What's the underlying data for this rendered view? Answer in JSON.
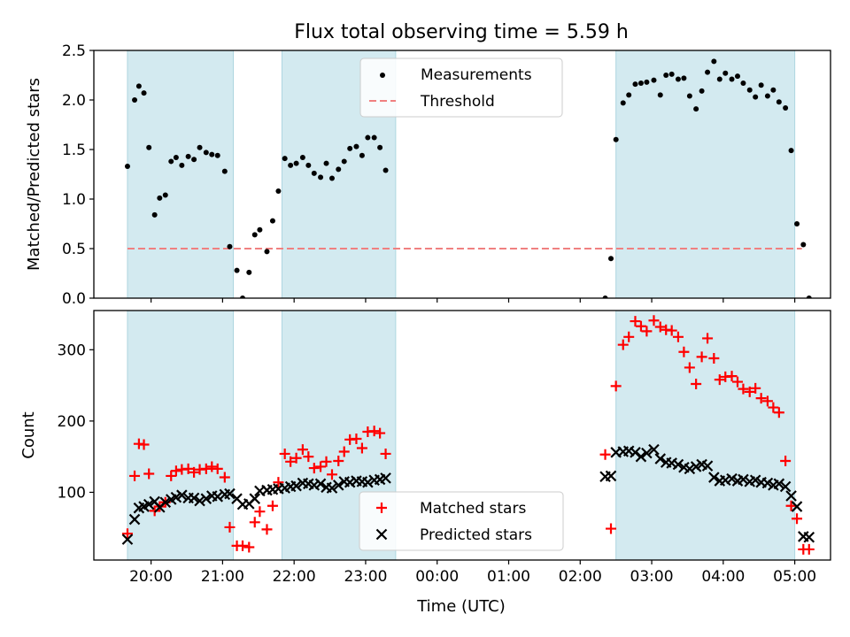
{
  "chart_data": [
    {
      "type": "scatter",
      "title": "Flux total observing time = 5.59 h",
      "ylabel": "Matched/Predicted stars",
      "xlabel": "",
      "ylim": [
        0,
        2.5
      ],
      "yticks": [
        "0.0",
        "0.5",
        "1.0",
        "1.5",
        "2.0",
        "2.5"
      ],
      "legend": {
        "placement": "top-center",
        "entries": [
          "Measurements",
          "Threshold"
        ]
      },
      "threshold": {
        "name": "Threshold",
        "value": 0.5,
        "color": "#f08080",
        "style": "dashed"
      },
      "series": [
        {
          "name": "Measurements",
          "marker": "dot",
          "color": "#000000",
          "points": [
            [
              19.67,
              1.33
            ],
            [
              19.77,
              2.0
            ],
            [
              19.83,
              2.14
            ],
            [
              19.9,
              2.07
            ],
            [
              19.97,
              1.52
            ],
            [
              20.05,
              0.84
            ],
            [
              20.12,
              1.01
            ],
            [
              20.2,
              1.04
            ],
            [
              20.28,
              1.38
            ],
            [
              20.35,
              1.42
            ],
            [
              20.43,
              1.34
            ],
            [
              20.52,
              1.43
            ],
            [
              20.6,
              1.4
            ],
            [
              20.68,
              1.52
            ],
            [
              20.77,
              1.47
            ],
            [
              20.85,
              1.45
            ],
            [
              20.93,
              1.44
            ],
            [
              21.03,
              1.28
            ],
            [
              21.1,
              0.52
            ],
            [
              21.2,
              0.28
            ],
            [
              21.28,
              0.0
            ],
            [
              21.37,
              0.26
            ],
            [
              21.45,
              0.64
            ],
            [
              21.52,
              0.69
            ],
            [
              21.62,
              0.47
            ],
            [
              21.7,
              0.78
            ],
            [
              21.78,
              1.08
            ],
            [
              21.87,
              1.41
            ],
            [
              21.95,
              1.34
            ],
            [
              22.03,
              1.36
            ],
            [
              22.12,
              1.42
            ],
            [
              22.2,
              1.34
            ],
            [
              22.28,
              1.26
            ],
            [
              22.37,
              1.22
            ],
            [
              22.45,
              1.36
            ],
            [
              22.53,
              1.21
            ],
            [
              22.62,
              1.3
            ],
            [
              22.7,
              1.38
            ],
            [
              22.78,
              1.51
            ],
            [
              22.87,
              1.53
            ],
            [
              22.95,
              1.44
            ],
            [
              23.03,
              1.62
            ],
            [
              23.12,
              1.62
            ],
            [
              23.2,
              1.52
            ],
            [
              23.28,
              1.29
            ],
            [
              26.35,
              0.0
            ],
            [
              26.43,
              0.4
            ],
            [
              26.5,
              1.6
            ],
            [
              26.6,
              1.97
            ],
            [
              26.68,
              2.05
            ],
            [
              26.77,
              2.16
            ],
            [
              26.85,
              2.17
            ],
            [
              26.93,
              2.18
            ],
            [
              27.03,
              2.2
            ],
            [
              27.12,
              2.05
            ],
            [
              27.2,
              2.25
            ],
            [
              27.28,
              2.26
            ],
            [
              27.37,
              2.21
            ],
            [
              27.45,
              2.22
            ],
            [
              27.53,
              2.04
            ],
            [
              27.62,
              1.91
            ],
            [
              27.7,
              2.09
            ],
            [
              27.78,
              2.28
            ],
            [
              27.87,
              2.39
            ],
            [
              27.95,
              2.21
            ],
            [
              28.03,
              2.27
            ],
            [
              28.12,
              2.21
            ],
            [
              28.2,
              2.24
            ],
            [
              28.28,
              2.17
            ],
            [
              28.37,
              2.1
            ],
            [
              28.45,
              2.03
            ],
            [
              28.53,
              2.15
            ],
            [
              28.62,
              2.04
            ],
            [
              28.7,
              2.1
            ],
            [
              28.78,
              1.98
            ],
            [
              28.87,
              1.92
            ],
            [
              28.95,
              1.49
            ],
            [
              29.03,
              0.75
            ],
            [
              29.12,
              0.54
            ],
            [
              29.2,
              0.0
            ]
          ]
        }
      ],
      "highlight_bands": [
        [
          19.67,
          21.15
        ],
        [
          21.83,
          23.42
        ],
        [
          26.5,
          29.0
        ]
      ],
      "band_color": "#d3eaf0"
    },
    {
      "type": "scatter",
      "title": "",
      "ylabel": "Count",
      "xlabel": "Time (UTC)",
      "ylim": [
        5,
        355
      ],
      "yticks": [
        "100",
        "200",
        "300"
      ],
      "xlim": [
        19.2,
        29.5
      ],
      "xticks": [
        "20:00",
        "21:00",
        "22:00",
        "23:00",
        "00:00",
        "01:00",
        "02:00",
        "03:00",
        "04:00",
        "05:00"
      ],
      "legend": {
        "placement": "bottom-center",
        "entries": [
          "Matched stars",
          "Predicted stars"
        ]
      },
      "series": [
        {
          "name": "Matched stars",
          "marker": "plus",
          "color": "#ff0000",
          "points": [
            [
              19.67,
              42
            ],
            [
              19.77,
              123
            ],
            [
              19.83,
              168
            ],
            [
              19.9,
              167
            ],
            [
              19.97,
              126
            ],
            [
              20.05,
              74
            ],
            [
              20.12,
              80
            ],
            [
              20.2,
              86
            ],
            [
              20.28,
              123
            ],
            [
              20.35,
              130
            ],
            [
              20.43,
              132
            ],
            [
              20.52,
              133
            ],
            [
              20.6,
              128
            ],
            [
              20.68,
              132
            ],
            [
              20.77,
              133
            ],
            [
              20.85,
              136
            ],
            [
              20.93,
              133
            ],
            [
              21.03,
              121
            ],
            [
              21.1,
              51
            ],
            [
              21.2,
              25
            ],
            [
              21.28,
              25
            ],
            [
              21.37,
              23
            ],
            [
              21.45,
              58
            ],
            [
              21.52,
              73
            ],
            [
              21.62,
              48
            ],
            [
              21.7,
              81
            ],
            [
              21.78,
              114
            ],
            [
              21.87,
              154
            ],
            [
              21.95,
              143
            ],
            [
              22.03,
              148
            ],
            [
              22.12,
              160
            ],
            [
              22.2,
              150
            ],
            [
              22.28,
              134
            ],
            [
              22.37,
              136
            ],
            [
              22.45,
              143
            ],
            [
              22.53,
              125
            ],
            [
              22.62,
              144
            ],
            [
              22.7,
              157
            ],
            [
              22.78,
              174
            ],
            [
              22.87,
              175
            ],
            [
              22.95,
              162
            ],
            [
              23.03,
              185
            ],
            [
              23.12,
              186
            ],
            [
              23.2,
              183
            ],
            [
              23.28,
              154
            ],
            [
              26.35,
              153
            ],
            [
              26.43,
              49
            ],
            [
              26.5,
              249
            ],
            [
              26.6,
              307
            ],
            [
              26.68,
              318
            ],
            [
              26.77,
              340
            ],
            [
              26.85,
              333
            ],
            [
              26.93,
              326
            ],
            [
              27.03,
              341
            ],
            [
              27.12,
              332
            ],
            [
              27.2,
              328
            ],
            [
              27.28,
              327
            ],
            [
              27.37,
              318
            ],
            [
              27.45,
              297
            ],
            [
              27.53,
              275
            ],
            [
              27.62,
              252
            ],
            [
              27.7,
              290
            ],
            [
              27.78,
              316
            ],
            [
              27.87,
              288
            ],
            [
              27.95,
              258
            ],
            [
              28.03,
              262
            ],
            [
              28.12,
              263
            ],
            [
              28.2,
              255
            ],
            [
              28.28,
              245
            ],
            [
              28.37,
              241
            ],
            [
              28.45,
              246
            ],
            [
              28.53,
              232
            ],
            [
              28.62,
              228
            ],
            [
              28.7,
              219
            ],
            [
              28.78,
              212
            ],
            [
              28.87,
              144
            ],
            [
              28.95,
              81
            ],
            [
              29.03,
              63
            ],
            [
              29.12,
              20
            ],
            [
              29.2,
              20
            ]
          ]
        },
        {
          "name": "Predicted stars",
          "marker": "x",
          "color": "#000000",
          "points": [
            [
              19.67,
              34
            ],
            [
              19.77,
              62
            ],
            [
              19.83,
              78
            ],
            [
              19.9,
              80
            ],
            [
              19.97,
              83
            ],
            [
              20.05,
              87
            ],
            [
              20.12,
              79
            ],
            [
              20.2,
              86
            ],
            [
              20.28,
              90
            ],
            [
              20.35,
              93
            ],
            [
              20.43,
              96
            ],
            [
              20.52,
              92
            ],
            [
              20.6,
              92
            ],
            [
              20.68,
              88
            ],
            [
              20.77,
              91
            ],
            [
              20.85,
              95
            ],
            [
              20.93,
              94
            ],
            [
              21.03,
              97
            ],
            [
              21.1,
              98
            ],
            [
              21.2,
              91
            ],
            [
              21.28,
              83
            ],
            [
              21.37,
              84
            ],
            [
              21.45,
              91
            ],
            [
              21.52,
              102
            ],
            [
              21.62,
              103
            ],
            [
              21.7,
              104
            ],
            [
              21.78,
              105
            ],
            [
              21.87,
              106
            ],
            [
              21.95,
              108
            ],
            [
              22.03,
              109
            ],
            [
              22.12,
              113
            ],
            [
              22.2,
              112
            ],
            [
              22.28,
              110
            ],
            [
              22.37,
              112
            ],
            [
              22.45,
              107
            ],
            [
              22.53,
              106
            ],
            [
              22.62,
              110
            ],
            [
              22.7,
              115
            ],
            [
              22.78,
              114
            ],
            [
              22.87,
              116
            ],
            [
              22.95,
              115
            ],
            [
              23.03,
              114
            ],
            [
              23.12,
              117
            ],
            [
              23.2,
              118
            ],
            [
              23.28,
              120
            ],
            [
              26.35,
              122
            ],
            [
              26.43,
              123
            ],
            [
              26.5,
              156
            ],
            [
              26.6,
              157
            ],
            [
              26.68,
              158
            ],
            [
              26.77,
              156
            ],
            [
              26.85,
              150
            ],
            [
              26.93,
              155
            ],
            [
              27.03,
              160
            ],
            [
              27.12,
              147
            ],
            [
              27.2,
              142
            ],
            [
              27.28,
              141
            ],
            [
              27.37,
              139
            ],
            [
              27.45,
              135
            ],
            [
              27.53,
              133
            ],
            [
              27.62,
              136
            ],
            [
              27.7,
              139
            ],
            [
              27.78,
              137
            ],
            [
              27.87,
              121
            ],
            [
              27.95,
              116
            ],
            [
              28.03,
              117
            ],
            [
              28.12,
              119
            ],
            [
              28.2,
              116
            ],
            [
              28.28,
              118
            ],
            [
              28.37,
              115
            ],
            [
              28.45,
              117
            ],
            [
              28.53,
              114
            ],
            [
              28.62,
              113
            ],
            [
              28.7,
              110
            ],
            [
              28.78,
              112
            ],
            [
              28.87,
              108
            ],
            [
              28.95,
              95
            ],
            [
              29.03,
              80
            ],
            [
              29.12,
              38
            ],
            [
              29.2,
              37
            ]
          ]
        }
      ],
      "highlight_bands": [
        [
          19.67,
          21.15
        ],
        [
          21.83,
          23.42
        ],
        [
          26.5,
          29.0
        ]
      ],
      "band_color": "#d3eaf0"
    }
  ]
}
